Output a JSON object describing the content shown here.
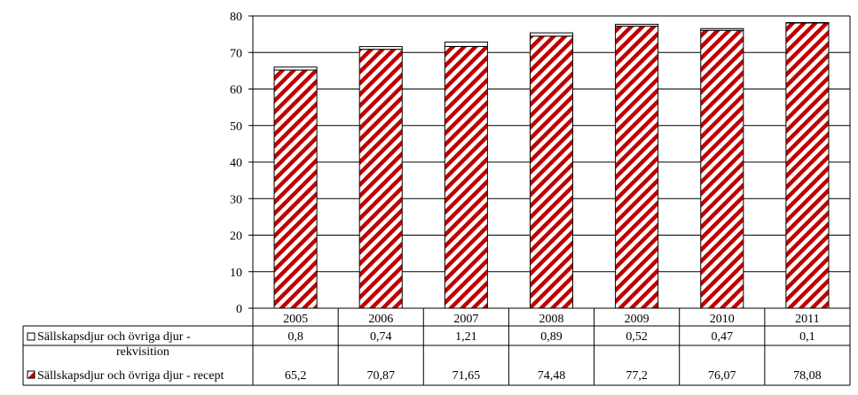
{
  "chart_data": {
    "type": "bar",
    "stacked": true,
    "categories": [
      "2005",
      "2006",
      "2007",
      "2008",
      "2009",
      "2010",
      "2011"
    ],
    "series": [
      {
        "name": "Sällskapsdjur och övriga djur - recept",
        "values": [
          65.2,
          70.87,
          71.65,
          74.48,
          77.2,
          76.07,
          78.08
        ],
        "value_labels": [
          "65,2",
          "70,87",
          "71,65",
          "74,48",
          "77,2",
          "76,07",
          "78,08"
        ],
        "fill": "hatched",
        "color": "#c00000"
      },
      {
        "name": "Sällskapsdjur och övriga djur - rekvisition",
        "values": [
          0.8,
          0.74,
          1.21,
          0.89,
          0.52,
          0.47,
          0.1
        ],
        "value_labels": [
          "0,8",
          "0,74",
          "1,21",
          "0,89",
          "0,52",
          "0,47",
          "0,1"
        ],
        "fill": "white",
        "color": "#ffffff"
      }
    ],
    "ylim": [
      0,
      80
    ],
    "yticks": [
      "0",
      "10",
      "20",
      "30",
      "40",
      "50",
      "60",
      "70",
      "80"
    ],
    "grid": true,
    "legend": "data-table-left",
    "xlabel": "",
    "ylabel": "",
    "title": ""
  }
}
